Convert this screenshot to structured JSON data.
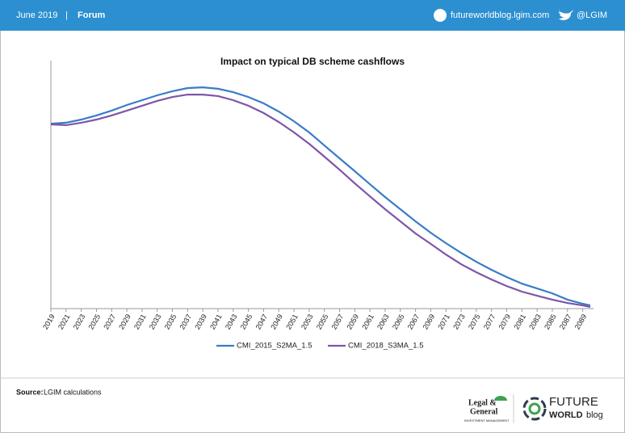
{
  "header": {
    "date": "June 2019",
    "separator": "|",
    "section": "Forum",
    "site": "futureworldblog.lgim.com",
    "twitter": "@LGIM"
  },
  "chart_data": {
    "type": "line",
    "title": "Impact on typical DB scheme cashflows",
    "x": [
      2019,
      2021,
      2023,
      2025,
      2027,
      2029,
      2031,
      2033,
      2035,
      2037,
      2039,
      2041,
      2043,
      2045,
      2047,
      2049,
      2051,
      2053,
      2055,
      2057,
      2059,
      2061,
      2063,
      2065,
      2067,
      2069,
      2071,
      2073,
      2075,
      2077,
      2079,
      2081,
      2083,
      2085,
      2087,
      2089,
      2090
    ],
    "xlim": [
      2019,
      2090
    ],
    "xticks": [
      2019,
      2021,
      2023,
      2025,
      2027,
      2029,
      2031,
      2033,
      2035,
      2037,
      2039,
      2041,
      2043,
      2045,
      2047,
      2049,
      2051,
      2053,
      2055,
      2057,
      2059,
      2061,
      2063,
      2065,
      2067,
      2069,
      2071,
      2073,
      2075,
      2077,
      2079,
      2081,
      2083,
      2085,
      2087,
      2089
    ],
    "ylim": [
      0,
      100
    ],
    "series": [
      {
        "name": "CMI_2015_S2MA_1.5",
        "color": "#3a7cc8",
        "values": [
          76.3,
          76.7,
          78,
          79.7,
          81.7,
          84,
          86,
          88,
          89.7,
          91,
          91.3,
          90.7,
          89.3,
          87.3,
          84.7,
          81.3,
          77.3,
          72.7,
          67.3,
          62,
          56.7,
          51.3,
          46,
          41,
          36,
          31.3,
          27,
          23,
          19.3,
          16,
          13,
          10.3,
          8.3,
          6.3,
          3.7,
          2,
          1.3
        ]
      },
      {
        "name": "CMI_2018_S3MA_1.5",
        "color": "#7e55a8",
        "values": [
          76,
          75.7,
          76.7,
          78,
          79.7,
          81.7,
          83.7,
          85.7,
          87.3,
          88.3,
          88.3,
          87.7,
          86,
          83.7,
          80.7,
          77,
          72.7,
          68,
          62.7,
          57.3,
          51.7,
          46.3,
          41,
          36,
          31,
          26.7,
          22.3,
          18.3,
          15,
          12,
          9.3,
          7,
          5.3,
          3.7,
          2.3,
          1.3,
          0.7
        ]
      }
    ]
  },
  "source": {
    "label": "Source:",
    "text": "LGIM calculations"
  },
  "logos": {
    "lg_top": "Legal &",
    "lg_bottom": "General",
    "lg_sub": "INVESTMENT MANAGEMENT",
    "fw_top": "FUTURE",
    "fw_bottom": "WORLD",
    "fw_blog": "blog"
  }
}
